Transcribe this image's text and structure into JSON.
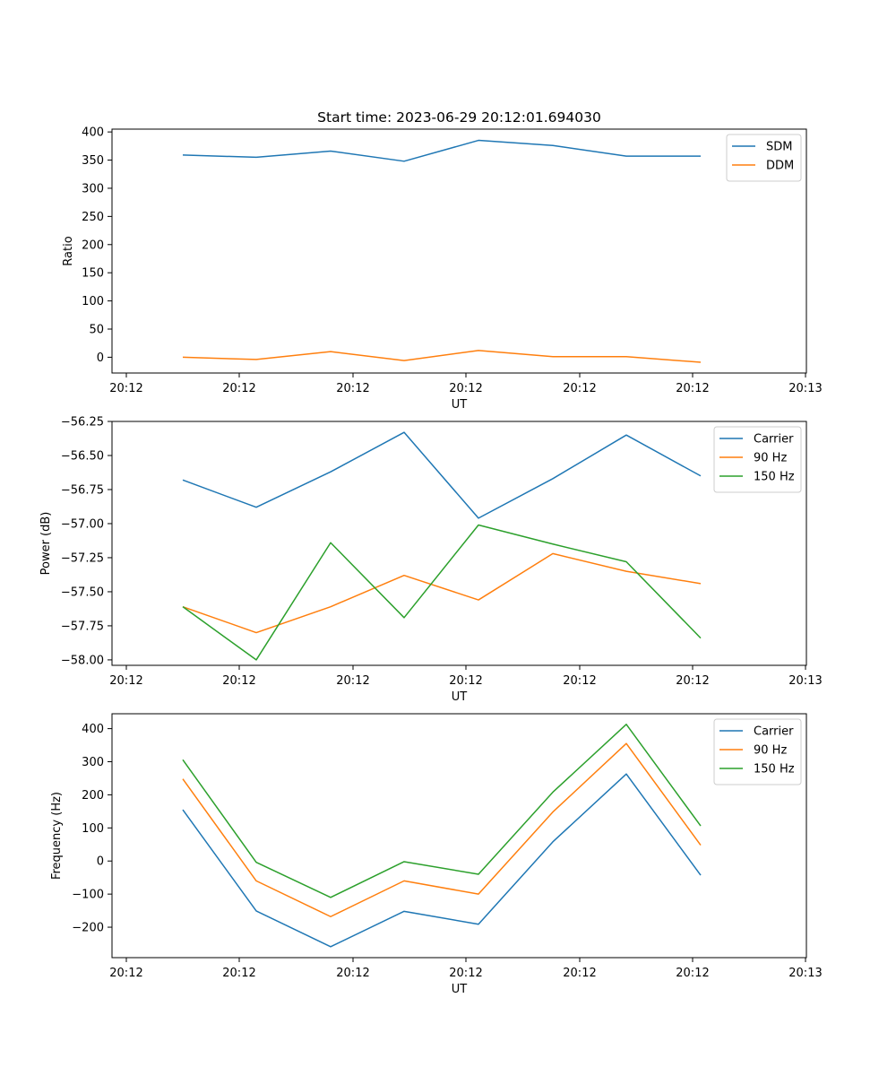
{
  "title": "Start time: 2023-06-29 20:12:01.694030",
  "chart_data": [
    {
      "type": "line",
      "title": "Start time: 2023-06-29 20:12:01.694030",
      "xlabel": "UT",
      "ylabel": "Ratio",
      "x_tick_labels": [
        "20:12",
        "20:12",
        "20:12",
        "20:12",
        "20:12",
        "20:12",
        "20:12",
        "20:13"
      ],
      "y_ticks": [
        0,
        50,
        100,
        150,
        200,
        250,
        300,
        350,
        400
      ],
      "y_tick_labels": [
        "0",
        "50",
        "100",
        "150",
        "200",
        "250",
        "300",
        "350",
        "400"
      ],
      "ylim": [
        -28,
        405
      ],
      "legend_position": "upper right",
      "series": [
        {
          "name": "SDM",
          "color": "#1f77b4",
          "values": [
            359,
            355,
            366,
            348,
            385,
            376,
            357,
            357
          ]
        },
        {
          "name": "DDM",
          "color": "#ff7f0e",
          "values": [
            0,
            -4,
            10,
            -6,
            12,
            1,
            1,
            -9
          ]
        }
      ]
    },
    {
      "type": "line",
      "xlabel": "UT",
      "ylabel": "Power (dB)",
      "x_tick_labels": [
        "20:12",
        "20:12",
        "20:12",
        "20:12",
        "20:12",
        "20:12",
        "20:12",
        "20:13"
      ],
      "y_ticks": [
        -58.0,
        -57.75,
        -57.5,
        -57.25,
        -57.0,
        -56.75,
        -56.5,
        -56.25
      ],
      "y_tick_labels": [
        "−58.00",
        "−57.75",
        "−57.50",
        "−57.25",
        "−57.00",
        "−56.75",
        "−56.50",
        "−56.25"
      ],
      "ylim": [
        -58.04,
        -56.25
      ],
      "legend_position": "upper right",
      "series": [
        {
          "name": "Carrier",
          "color": "#1f77b4",
          "values": [
            -56.68,
            -56.88,
            -56.62,
            -56.33,
            -56.96,
            -56.67,
            -56.35,
            -56.65
          ]
        },
        {
          "name": "90 Hz",
          "color": "#ff7f0e",
          "values": [
            -57.61,
            -57.8,
            -57.61,
            -57.38,
            -57.56,
            -57.22,
            -57.35,
            -57.44
          ]
        },
        {
          "name": "150 Hz",
          "color": "#2ca02c",
          "values": [
            -57.61,
            -58.0,
            -57.14,
            -57.69,
            -57.01,
            -57.15,
            -57.28,
            -57.84
          ]
        }
      ]
    },
    {
      "type": "line",
      "xlabel": "UT",
      "ylabel": "Frequency (Hz)",
      "x_tick_labels": [
        "20:12",
        "20:12",
        "20:12",
        "20:12",
        "20:12",
        "20:12",
        "20:12",
        "20:13"
      ],
      "y_ticks": [
        -200,
        -100,
        0,
        100,
        200,
        300,
        400
      ],
      "y_tick_labels": [
        "−200",
        "−100",
        "0",
        "100",
        "200",
        "300",
        "400"
      ],
      "ylim": [
        -292,
        445
      ],
      "legend_position": "upper right",
      "series": [
        {
          "name": "Carrier",
          "color": "#1f77b4",
          "values": [
            155,
            -151,
            -259,
            -152,
            -191,
            58,
            263,
            -43
          ]
        },
        {
          "name": "90 Hz",
          "color": "#ff7f0e",
          "values": [
            248,
            -60,
            -168,
            -60,
            -100,
            148,
            355,
            48
          ]
        },
        {
          "name": "150 Hz",
          "color": "#2ca02c",
          "values": [
            306,
            -4,
            -110,
            -2,
            -40,
            208,
            413,
            106
          ]
        }
      ]
    }
  ]
}
